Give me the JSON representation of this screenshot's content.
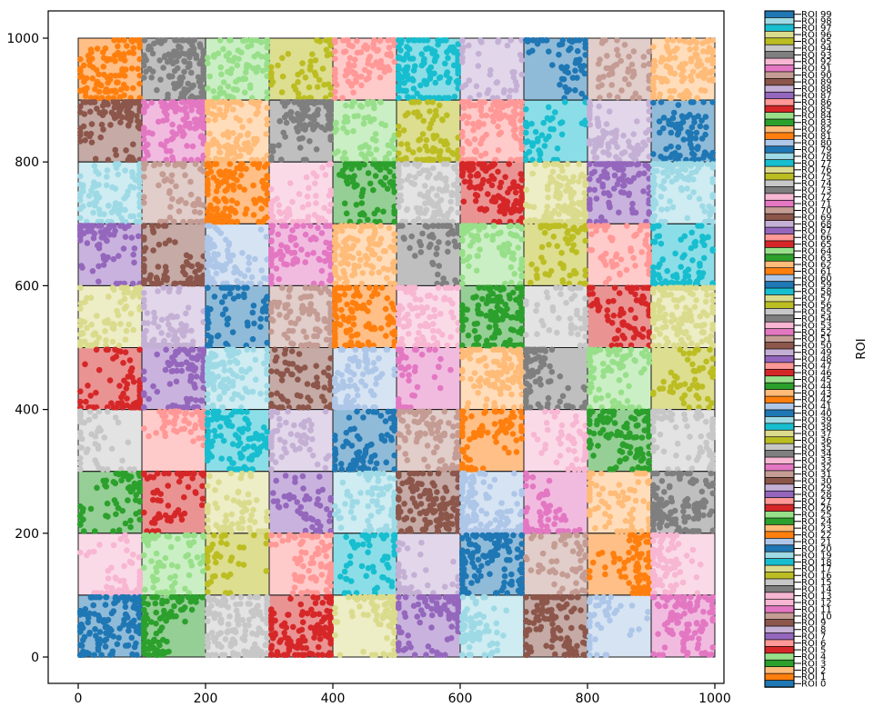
{
  "figure": {
    "background": "#ffffff",
    "frame_color": "#000000"
  },
  "axes": {
    "x_tick_labels": [
      "0",
      "200",
      "400",
      "600",
      "800",
      "1000"
    ],
    "y_tick_labels": [
      "0",
      "200",
      "400",
      "600",
      "800",
      "1000"
    ],
    "x_tick_values": [
      0,
      200,
      400,
      600,
      800,
      1000
    ],
    "y_tick_values": [
      0,
      200,
      400,
      600,
      800,
      1000
    ]
  },
  "grid": {
    "rows": 10,
    "cols": 10,
    "cell_fill_alpha": 0.5,
    "cell_edge_color": "#1a1a1a",
    "cell_rows_top_to_bottom": [
      [
        "#ff7f0e",
        "#7f7f7f",
        "#98df8a",
        "#bcbd22",
        "#ff9896",
        "#17becf",
        "#c5b0d5",
        "#1f77b4",
        "#c49c94",
        "#ffbb78"
      ],
      [
        "#8c564b",
        "#e377c2",
        "#ffbb78",
        "#7f7f7f",
        "#98df8a",
        "#bcbd22",
        "#ff9896",
        "#17becf",
        "#c5b0d5",
        "#1f77b4"
      ],
      [
        "#9edae5",
        "#c49c94",
        "#ff7f0e",
        "#f7b6d2",
        "#2ca02c",
        "#c7c7c7",
        "#d62728",
        "#dbdb8d",
        "#9467bd",
        "#9edae5"
      ],
      [
        "#9467bd",
        "#8c564b",
        "#aec7e8",
        "#e377c2",
        "#ffbb78",
        "#7f7f7f",
        "#98df8a",
        "#bcbd22",
        "#ff9896",
        "#17becf"
      ],
      [
        "#dbdb8d",
        "#c5b0d5",
        "#1f77b4",
        "#c49c94",
        "#ff7f0e",
        "#f7b6d2",
        "#2ca02c",
        "#c7c7c7",
        "#d62728",
        "#dbdb8d"
      ],
      [
        "#d62728",
        "#9467bd",
        "#9edae5",
        "#8c564b",
        "#aec7e8",
        "#e377c2",
        "#ffbb78",
        "#7f7f7f",
        "#98df8a",
        "#bcbd22"
      ],
      [
        "#c7c7c7",
        "#ff9896",
        "#17becf",
        "#c5b0d5",
        "#1f77b4",
        "#c49c94",
        "#ff7f0e",
        "#f7b6d2",
        "#2ca02c",
        "#c7c7c7"
      ],
      [
        "#2ca02c",
        "#d62728",
        "#dbdb8d",
        "#9467bd",
        "#9edae5",
        "#8c564b",
        "#aec7e8",
        "#e377c2",
        "#ffbb78",
        "#7f7f7f"
      ],
      [
        "#f7b6d2",
        "#98df8a",
        "#bcbd22",
        "#ff9896",
        "#17becf",
        "#c5b0d5",
        "#1f77b4",
        "#c49c94",
        "#ff7f0e",
        "#f7b6d2"
      ],
      [
        "#1f77b4",
        "#2ca02c",
        "#c7c7c7",
        "#d62728",
        "#dbdb8d",
        "#9467bd",
        "#9edae5",
        "#8c564b",
        "#aec7e8",
        "#e377c2"
      ]
    ]
  },
  "legend": {
    "axis_label": "ROI",
    "label_prefix": "ROI",
    "entries_bottom_to_top": [
      {
        "label": "ROI 0",
        "color": "#1f77b4"
      },
      {
        "label": "ROI 1",
        "color": "#ff7f0e"
      },
      {
        "label": "ROI 2",
        "color": "#ffbb78"
      },
      {
        "label": "ROI 3",
        "color": "#2ca02c"
      },
      {
        "label": "ROI 4",
        "color": "#98df8a"
      },
      {
        "label": "ROI 5",
        "color": "#d62728"
      },
      {
        "label": "ROI 6",
        "color": "#ff9896"
      },
      {
        "label": "ROI 7",
        "color": "#9467bd"
      },
      {
        "label": "ROI 8",
        "color": "#c5b0d5"
      },
      {
        "label": "ROI 9",
        "color": "#8c564b"
      },
      {
        "label": "ROI 10",
        "color": "#c49c94"
      },
      {
        "label": "ROI 11",
        "color": "#e377c2"
      },
      {
        "label": "ROI 12",
        "color": "#f7b6d2"
      },
      {
        "label": "ROI 13",
        "color": "#f7b6d2"
      },
      {
        "label": "ROI 14",
        "color": "#7f7f7f"
      },
      {
        "label": "ROI 15",
        "color": "#c7c7c7"
      },
      {
        "label": "ROI 16",
        "color": "#bcbd22"
      },
      {
        "label": "ROI 17",
        "color": "#dbdb8d"
      },
      {
        "label": "ROI 18",
        "color": "#17becf"
      },
      {
        "label": "ROI 19",
        "color": "#9edae5"
      },
      {
        "label": "ROI 20",
        "color": "#1f77b4"
      },
      {
        "label": "ROI 21",
        "color": "#aec7e8"
      },
      {
        "label": "ROI 22",
        "color": "#ff7f0e"
      },
      {
        "label": "ROI 23",
        "color": "#ffbb78"
      },
      {
        "label": "ROI 24",
        "color": "#2ca02c"
      },
      {
        "label": "ROI 25",
        "color": "#98df8a"
      },
      {
        "label": "ROI 26",
        "color": "#d62728"
      },
      {
        "label": "ROI 27",
        "color": "#ff9896"
      },
      {
        "label": "ROI 28",
        "color": "#9467bd"
      },
      {
        "label": "ROI 29",
        "color": "#c5b0d5"
      },
      {
        "label": "ROI 30",
        "color": "#8c564b"
      },
      {
        "label": "ROI 31",
        "color": "#c49c94"
      },
      {
        "label": "ROI 32",
        "color": "#e377c2"
      },
      {
        "label": "ROI 33",
        "color": "#f7b6d2"
      },
      {
        "label": "ROI 34",
        "color": "#7f7f7f"
      },
      {
        "label": "ROI 35",
        "color": "#c7c7c7"
      },
      {
        "label": "ROI 36",
        "color": "#bcbd22"
      },
      {
        "label": "ROI 37",
        "color": "#dbdb8d"
      },
      {
        "label": "ROI 38",
        "color": "#17becf"
      },
      {
        "label": "ROI 39",
        "color": "#9edae5"
      },
      {
        "label": "ROI 40",
        "color": "#1f77b4"
      },
      {
        "label": "ROI 41",
        "color": "#aec7e8"
      },
      {
        "label": "ROI 42",
        "color": "#ff7f0e"
      },
      {
        "label": "ROI 43",
        "color": "#ffbb78"
      },
      {
        "label": "ROI 44",
        "color": "#2ca02c"
      },
      {
        "label": "ROI 45",
        "color": "#98df8a"
      },
      {
        "label": "ROI 46",
        "color": "#d62728"
      },
      {
        "label": "ROI 47",
        "color": "#ff9896"
      },
      {
        "label": "ROI 48",
        "color": "#9467bd"
      },
      {
        "label": "ROI 49",
        "color": "#c5b0d5"
      },
      {
        "label": "ROI 50",
        "color": "#8c564b"
      },
      {
        "label": "ROI 51",
        "color": "#c49c94"
      },
      {
        "label": "ROI 52",
        "color": "#e377c2"
      },
      {
        "label": "ROI 53",
        "color": "#f7b6d2"
      },
      {
        "label": "ROI 54",
        "color": "#7f7f7f"
      },
      {
        "label": "ROI 55",
        "color": "#c7c7c7"
      },
      {
        "label": "ROI 56",
        "color": "#bcbd22"
      },
      {
        "label": "ROI 57",
        "color": "#dbdb8d"
      },
      {
        "label": "ROI 58",
        "color": "#17becf"
      },
      {
        "label": "ROI 59",
        "color": "#1f77b4"
      },
      {
        "label": "ROI 60",
        "color": "#aec7e8"
      },
      {
        "label": "ROI 61",
        "color": "#ff7f0e"
      },
      {
        "label": "ROI 62",
        "color": "#ffbb78"
      },
      {
        "label": "ROI 63",
        "color": "#2ca02c"
      },
      {
        "label": "ROI 64",
        "color": "#98df8a"
      },
      {
        "label": "ROI 65",
        "color": "#d62728"
      },
      {
        "label": "ROI 66",
        "color": "#ff9896"
      },
      {
        "label": "ROI 67",
        "color": "#9467bd"
      },
      {
        "label": "ROI 68",
        "color": "#c5b0d5"
      },
      {
        "label": "ROI 69",
        "color": "#8c564b"
      },
      {
        "label": "ROI 70",
        "color": "#c49c94"
      },
      {
        "label": "ROI 71",
        "color": "#e377c2"
      },
      {
        "label": "ROI 72",
        "color": "#f7b6d2"
      },
      {
        "label": "ROI 73",
        "color": "#7f7f7f"
      },
      {
        "label": "ROI 74",
        "color": "#c7c7c7"
      },
      {
        "label": "ROI 75",
        "color": "#bcbd22"
      },
      {
        "label": "ROI 76",
        "color": "#dbdb8d"
      },
      {
        "label": "ROI 77",
        "color": "#17becf"
      },
      {
        "label": "ROI 78",
        "color": "#9edae5"
      },
      {
        "label": "ROI 79",
        "color": "#1f77b4"
      },
      {
        "label": "ROI 80",
        "color": "#aec7e8"
      },
      {
        "label": "ROI 81",
        "color": "#ff7f0e"
      },
      {
        "label": "ROI 82",
        "color": "#ffbb78"
      },
      {
        "label": "ROI 83",
        "color": "#2ca02c"
      },
      {
        "label": "ROI 84",
        "color": "#98df8a"
      },
      {
        "label": "ROI 85",
        "color": "#d62728"
      },
      {
        "label": "ROI 86",
        "color": "#ff9896"
      },
      {
        "label": "ROI 87",
        "color": "#9467bd"
      },
      {
        "label": "ROI 88",
        "color": "#c5b0d5"
      },
      {
        "label": "ROI 89",
        "color": "#8c564b"
      },
      {
        "label": "ROI 90",
        "color": "#c49c94"
      },
      {
        "label": "ROI 91",
        "color": "#e377c2"
      },
      {
        "label": "ROI 92",
        "color": "#f7b6d2"
      },
      {
        "label": "ROI 93",
        "color": "#7f7f7f"
      },
      {
        "label": "ROI 94",
        "color": "#c7c7c7"
      },
      {
        "label": "ROI 95",
        "color": "#bcbd22"
      },
      {
        "label": "ROI 96",
        "color": "#dbdb8d"
      },
      {
        "label": "ROI 97",
        "color": "#17becf"
      },
      {
        "label": "ROI 98",
        "color": "#9edae5"
      },
      {
        "label": "ROI 99",
        "color": "#1f77b4"
      }
    ]
  },
  "chart_data": {
    "type": "scatter",
    "title": "",
    "xlabel": "",
    "ylabel": "",
    "colorbar_label": "ROI",
    "xlim": [
      -47,
      1014
    ],
    "ylim": [
      -43,
      1044
    ],
    "x_ticks": [
      0,
      200,
      400,
      600,
      800,
      1000
    ],
    "y_ticks": [
      0,
      200,
      400,
      600,
      800,
      1000
    ],
    "grid_on": false,
    "legend_position": "right-colorbar",
    "description": "10x10 tiling of 100x100-unit square ROIs covering 0-1000 on both axes; each ROI drawn as a semi-transparent colored square (tab20 palette) filled with a dense cluster of scatter points of the same color; colorbar-style legend on the right lists ROI 0 (bottom) through ROI 99 (top).",
    "roi_grid_size": 100,
    "points_per_roi_approx": 100
  }
}
